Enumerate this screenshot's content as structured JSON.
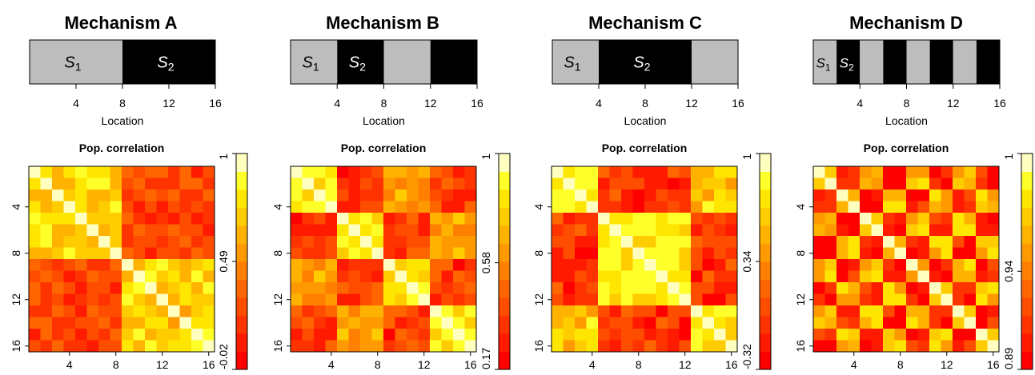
{
  "panels": [
    {
      "title": "Mechanism A",
      "segment_boundaries": [
        0,
        8,
        16
      ],
      "segment_colors": [
        "#bdbdbd",
        "#000000"
      ],
      "segment_labels": [
        {
          "base": "S",
          "sub": "1",
          "segment": 0
        },
        {
          "base": "S",
          "sub": "2",
          "segment": 1
        }
      ],
      "location_ticks": [
        "4",
        "8",
        "12",
        "16"
      ],
      "location_label": "Location",
      "heatmap_title": "Pop. correlation",
      "matrix_ticks": [
        "4",
        "8",
        "12",
        "16"
      ],
      "colorbar_ticks": [
        "-0.02",
        "0.49",
        "1"
      ]
    },
    {
      "title": "Mechanism B",
      "segment_boundaries": [
        0,
        4,
        8,
        12,
        16
      ],
      "segment_colors": [
        "#bdbdbd",
        "#000000",
        "#bdbdbd",
        "#000000"
      ],
      "segment_labels": [
        {
          "base": "S",
          "sub": "1",
          "segment": 0
        },
        {
          "base": "S",
          "sub": "2",
          "segment": 1
        }
      ],
      "location_ticks": [
        "4",
        "8",
        "12",
        "16"
      ],
      "location_label": "Location",
      "heatmap_title": "Pop. correlation",
      "matrix_ticks": [
        "4",
        "8",
        "12",
        "16"
      ],
      "colorbar_ticks": [
        "0.17",
        "0.58",
        "1"
      ]
    },
    {
      "title": "Mechanism C",
      "segment_boundaries": [
        0,
        4,
        12,
        16
      ],
      "segment_colors": [
        "#bdbdbd",
        "#000000",
        "#bdbdbd"
      ],
      "segment_labels": [
        {
          "base": "S",
          "sub": "1",
          "segment": 0
        },
        {
          "base": "S",
          "sub": "2",
          "segment": 1
        }
      ],
      "location_ticks": [
        "4",
        "8",
        "12",
        "16"
      ],
      "location_label": "Location",
      "heatmap_title": "Pop. correlation",
      "matrix_ticks": [
        "4",
        "8",
        "12",
        "16"
      ],
      "colorbar_ticks": [
        "-0.32",
        "0.34",
        "1"
      ]
    },
    {
      "title": "Mechanism D",
      "segment_boundaries": [
        0,
        2,
        4,
        6,
        8,
        10,
        12,
        14,
        16
      ],
      "segment_colors": [
        "#bdbdbd",
        "#000000",
        "#bdbdbd",
        "#000000",
        "#bdbdbd",
        "#000000",
        "#bdbdbd",
        "#000000"
      ],
      "segment_labels": [
        {
          "base": "S",
          "sub": "1",
          "segment": 0
        },
        {
          "base": "S",
          "sub": "2",
          "segment": 1
        }
      ],
      "location_ticks": [
        "4",
        "8",
        "12",
        "16"
      ],
      "location_label": "Location",
      "heatmap_title": "Pop. correlation",
      "matrix_ticks": [
        "4",
        "8",
        "12",
        "16"
      ],
      "colorbar_ticks": [
        "0.89",
        "0.94",
        "1"
      ]
    }
  ],
  "chart_data": [
    {
      "type": "heatmap",
      "title": "Pop. correlation",
      "panel": "Mechanism A",
      "size": 16,
      "structure": "block",
      "blocks": [
        [
          1,
          8
        ],
        [
          9,
          16
        ]
      ],
      "within_block_correlation": 0.72,
      "between_block_correlation": 0.25,
      "diagonal": 1,
      "color_range": [
        -0.02,
        1
      ],
      "colorbar_ticks": [
        -0.02,
        0.49,
        1
      ],
      "axis_ticks": [
        4,
        8,
        12,
        16
      ],
      "colormap": "heat (red-orange-yellow-white)"
    },
    {
      "type": "heatmap",
      "title": "Pop. correlation",
      "panel": "Mechanism B",
      "size": 16,
      "structure": "alternating blocks of 4",
      "blocks": [
        [
          1,
          4
        ],
        [
          5,
          8
        ],
        [
          9,
          12
        ],
        [
          13,
          16
        ]
      ],
      "block_labels": [
        "S1",
        "S2",
        "S1",
        "S2"
      ],
      "within_block_correlation": 0.85,
      "same_state_block_correlation": 0.65,
      "between_state_correlation": 0.35,
      "diagonal": 1,
      "color_range": [
        0.17,
        1
      ],
      "colorbar_ticks": [
        0.17,
        0.58,
        1
      ],
      "axis_ticks": [
        4,
        8,
        12,
        16
      ],
      "colormap": "heat (red-orange-yellow-white)"
    },
    {
      "type": "heatmap",
      "title": "Pop. correlation",
      "panel": "Mechanism C",
      "size": 16,
      "structure": "blocks S1 = [1-4] and [13-16], S2 = [5-12]",
      "blocks": [
        [
          1,
          4
        ],
        [
          5,
          12
        ],
        [
          13,
          16
        ]
      ],
      "block_labels": [
        "S1",
        "S2",
        "S1"
      ],
      "within_block_correlation": 0.8,
      "same_state_block_correlation": 0.6,
      "between_state_correlation": -0.05,
      "diagonal": 1,
      "color_range": [
        -0.32,
        1
      ],
      "colorbar_ticks": [
        -0.32,
        0.34,
        1
      ],
      "axis_ticks": [
        4,
        8,
        12,
        16
      ],
      "colormap": "heat (red-orange-yellow-white)"
    },
    {
      "type": "heatmap",
      "title": "Pop. correlation",
      "panel": "Mechanism D",
      "size": 16,
      "structure": "alternating blocks of 2 (checkerboard)",
      "blocks": [
        [
          1,
          2
        ],
        [
          3,
          4
        ],
        [
          5,
          6
        ],
        [
          7,
          8
        ],
        [
          9,
          10
        ],
        [
          11,
          12
        ],
        [
          13,
          14
        ],
        [
          15,
          16
        ]
      ],
      "block_labels": [
        "S1",
        "S2",
        "S1",
        "S2",
        "S1",
        "S2",
        "S1",
        "S2"
      ],
      "same_state_correlation": 0.965,
      "between_state_correlation": 0.905,
      "diagonal": 1,
      "color_range": [
        0.89,
        1
      ],
      "colorbar_ticks": [
        0.89,
        0.94,
        1
      ],
      "axis_ticks": [
        4,
        8,
        12,
        16
      ],
      "colormap": "heat (red-orange-yellow-white)"
    }
  ]
}
